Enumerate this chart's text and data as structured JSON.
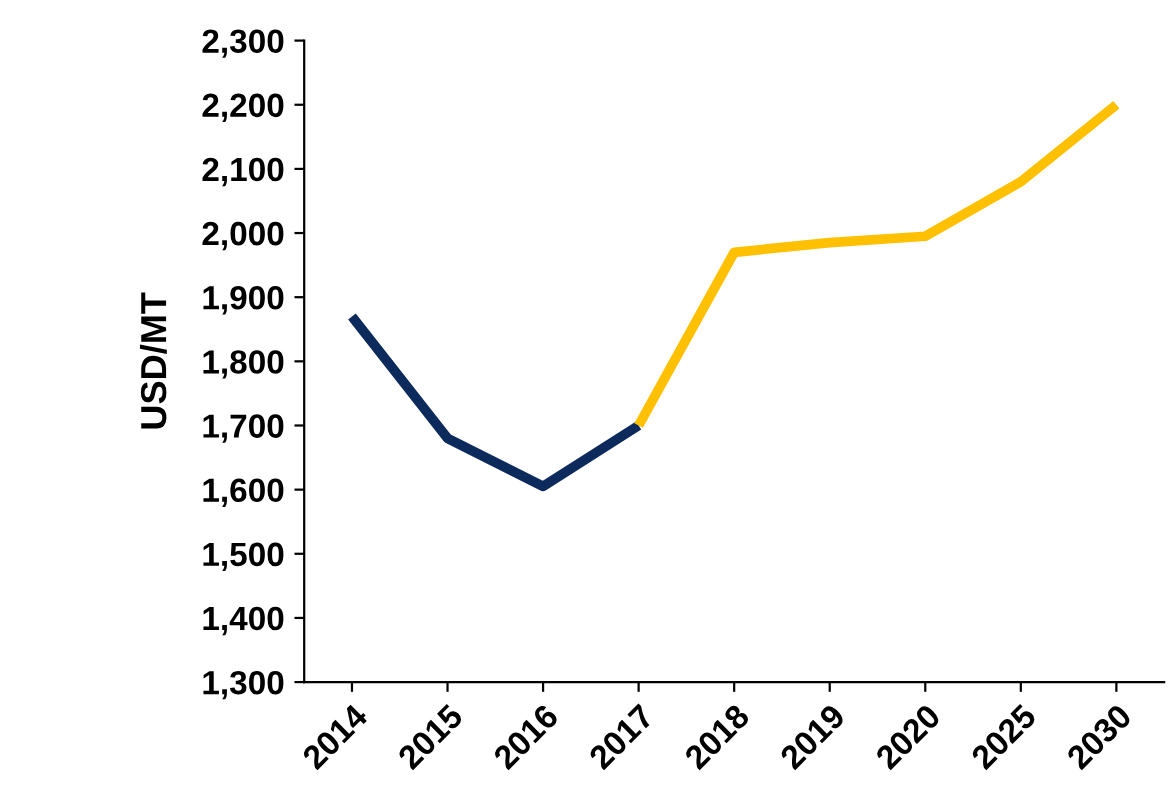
{
  "chart_data": {
    "type": "line",
    "ylabel": "USD/MT",
    "categories": [
      "2014",
      "2015",
      "2016",
      "2017",
      "2018",
      "2019",
      "2020",
      "2025",
      "2030"
    ],
    "series": [
      {
        "color": "#0d2a5c",
        "values": [
          1870,
          1680,
          1605,
          1700,
          null,
          null,
          null,
          null,
          null
        ]
      },
      {
        "color": "#ffc000",
        "values": [
          null,
          null,
          null,
          1700,
          1970,
          1985,
          1995,
          2080,
          2200
        ]
      }
    ],
    "ylim": [
      1300,
      2300
    ],
    "yticks": [
      {
        "value": 1300,
        "label": "1,300"
      },
      {
        "value": 1400,
        "label": "1,400"
      },
      {
        "value": 1500,
        "label": "1,500"
      },
      {
        "value": 1600,
        "label": "1,600"
      },
      {
        "value": 1700,
        "label": "1,700"
      },
      {
        "value": 1800,
        "label": "1,800"
      },
      {
        "value": 1900,
        "label": "1,900"
      },
      {
        "value": 2000,
        "label": "2,000"
      },
      {
        "value": 2100,
        "label": "2,100"
      },
      {
        "value": 2200,
        "label": "2,200"
      },
      {
        "value": 2300,
        "label": "2,300"
      }
    ],
    "grid": false,
    "marker": "none",
    "line_style": "solid"
  }
}
